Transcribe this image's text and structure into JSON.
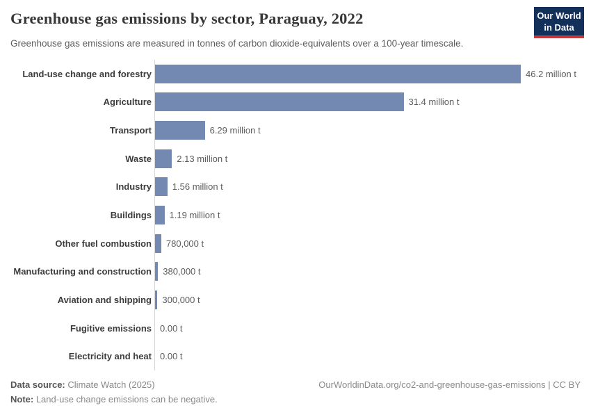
{
  "header": {
    "title": "Greenhouse gas emissions by sector, Paraguay, 2022",
    "subtitle": "Greenhouse gas emissions are measured in tonnes of carbon dioxide-equivalents over a 100-year timescale.",
    "logo": {
      "line1": "Our World",
      "line2": "in Data",
      "background_color": "#12305a",
      "accent_color": "#c13b3b"
    }
  },
  "chart_data": {
    "type": "bar",
    "orientation": "horizontal",
    "title": "Greenhouse gas emissions by sector, Paraguay, 2022",
    "subtitle": "Greenhouse gas emissions are measured in tonnes of carbon dioxide-equivalents over a 100-year timescale.",
    "unit": "tonnes of carbon dioxide-equivalents",
    "categories": [
      "Land-use change and forestry",
      "Agriculture",
      "Transport",
      "Waste",
      "Industry",
      "Buildings",
      "Other fuel combustion",
      "Manufacturing and construction",
      "Aviation and shipping",
      "Fugitive emissions",
      "Electricity and heat"
    ],
    "values": [
      46200000,
      31400000,
      6290000,
      2130000,
      1560000,
      1190000,
      780000,
      380000,
      300000,
      0,
      0
    ],
    "value_labels": [
      "46.2 million t",
      "31.4 million t",
      "6.29 million t",
      "2.13 million t",
      "1.56 million t",
      "1.19 million t",
      "780,000 t",
      "380,000 t",
      "300,000 t",
      "0.00 t",
      "0.00 t"
    ],
    "xlim": [
      0,
      46200000
    ],
    "bar_color": "#7389b1",
    "grid": false,
    "legend": false
  },
  "footer": {
    "data_source_label": "Data source:",
    "data_source_value": " Climate Watch (2025)",
    "note_label": "Note:",
    "note_value": " Land-use change emissions can be negative.",
    "url": "OurWorldinData.org/co2-and-greenhouse-gas-emissions | CC BY"
  }
}
